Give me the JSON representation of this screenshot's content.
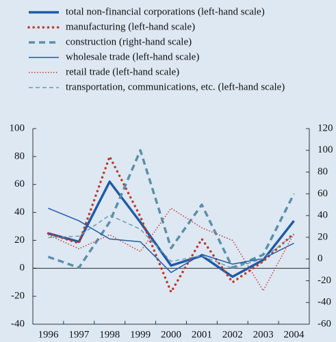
{
  "chart_data": {
    "type": "line",
    "categories": [
      "1996",
      "1997",
      "1998",
      "1999",
      "2000",
      "2001",
      "2002",
      "2003",
      "2004"
    ],
    "series": [
      {
        "name": "total non-financial corporations (left-hand scale)",
        "color": "#1f5aa6",
        "style": "solid",
        "width": 3.5,
        "values": [
          25,
          19,
          62,
          33,
          2,
          9,
          -6,
          6,
          34
        ]
      },
      {
        "name": "manufacturing (left-hand scale)",
        "color": "#c0392b",
        "style": "dotted",
        "width": 3.5,
        "values": [
          25,
          18,
          80,
          37,
          -17,
          21,
          -10,
          5,
          25
        ]
      },
      {
        "name": "construction (right-hand scale)",
        "color": "#5b8fa8",
        "style": "dashed",
        "width": 3.5,
        "axis": "y2",
        "values": [
          2,
          -8,
          34,
          100,
          10,
          50,
          -8,
          4,
          60
        ]
      },
      {
        "name": "wholesale trade (left-hand scale)",
        "color": "#1f5aa6",
        "style": "solid",
        "width": 1.5,
        "values": [
          43,
          34,
          21,
          19,
          -3,
          10,
          3,
          7,
          18
        ]
      },
      {
        "name": "retail trade (left-hand scale)",
        "color": "#c0392b",
        "style": "dotted",
        "width": 1.5,
        "values": [
          24,
          14,
          24,
          12,
          43,
          29,
          20,
          -16,
          25
        ]
      },
      {
        "name": "transportation, communications, etc. (left-hand scale)",
        "color": "#6a9ab0",
        "style": "dashed",
        "width": 1.5,
        "values": [
          22,
          23,
          38,
          28,
          5,
          9,
          0,
          7,
          24
        ]
      }
    ],
    "ylim": [
      -40,
      100
    ],
    "yticks": [
      -40,
      -20,
      0,
      20,
      40,
      60,
      80,
      100
    ],
    "y2lim": [
      -60,
      120
    ],
    "y2ticks": [
      -60,
      -40,
      -20,
      0,
      20,
      40,
      60,
      80,
      100,
      120
    ]
  }
}
